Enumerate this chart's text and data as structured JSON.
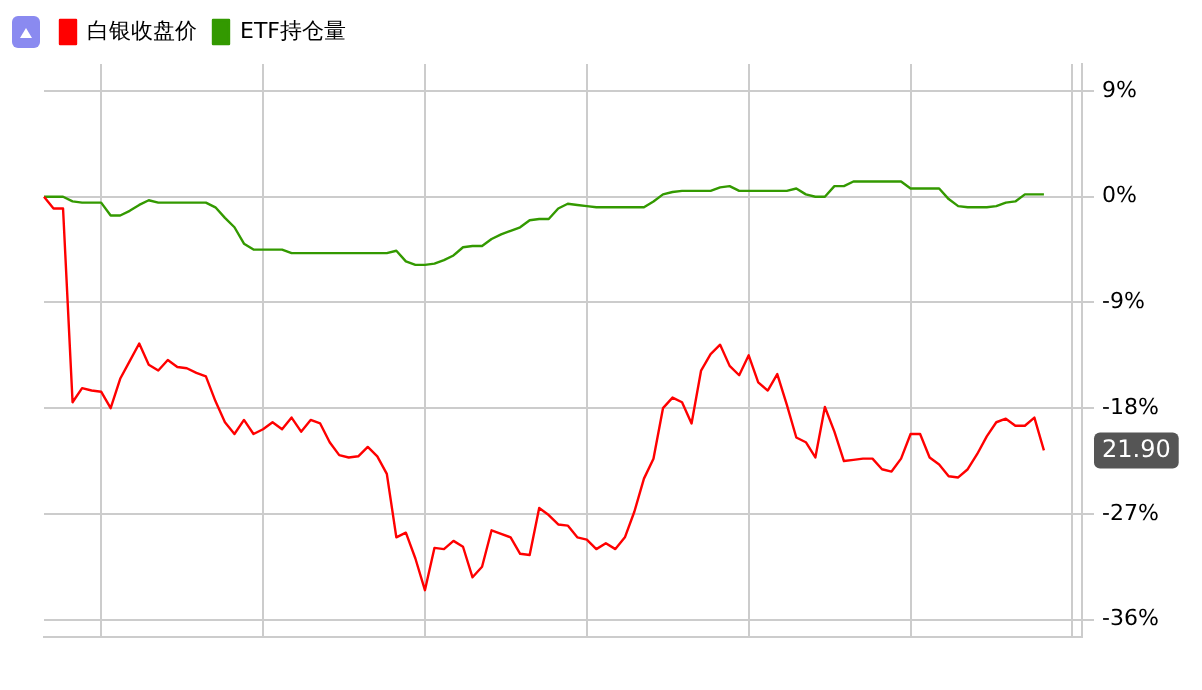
{
  "chart_data": {
    "type": "line",
    "categories": [
      null,
      null,
      null,
      null,
      null,
      null,
      null,
      null,
      null,
      null,
      null,
      null,
      null,
      null,
      null,
      null,
      null,
      null,
      null,
      null,
      null,
      null,
      null,
      null,
      null,
      null,
      null,
      null,
      null,
      null,
      null,
      null,
      null,
      null,
      null,
      null,
      null,
      null,
      null,
      null,
      null,
      null,
      null,
      null,
      null,
      null,
      null,
      null,
      null,
      null,
      null,
      null,
      null,
      null,
      null,
      null,
      null,
      null,
      null,
      null,
      null,
      null,
      null,
      null,
      null,
      null,
      null,
      null,
      null,
      null,
      null,
      null,
      null,
      null,
      null,
      null,
      null,
      null,
      null,
      null,
      null,
      null,
      null,
      null,
      null,
      null,
      null,
      null,
      null,
      null,
      null,
      null,
      null,
      null,
      null,
      null,
      null,
      null,
      null,
      null,
      null,
      null,
      null,
      null,
      null,
      null,
      null,
      null,
      null,
      null
    ],
    "series": [
      {
        "name": "白银收盘价",
        "color": "#ff0000",
        "values": [
          0,
          -1.0,
          -1.0,
          -17.5,
          -16.3,
          -16.5,
          -16.6,
          -18.0,
          -15.5,
          -14.0,
          -12.5,
          -14.3,
          -14.8,
          -13.9,
          -14.5,
          -14.6,
          -15.0,
          -15.3,
          -17.4,
          -19.2,
          -20.2,
          -19.0,
          -20.2,
          -19.8,
          -19.2,
          -19.8,
          -18.8,
          -20.0,
          -19.0,
          -19.3,
          -20.9,
          -22.0,
          -22.2,
          -22.1,
          -21.3,
          -22.1,
          -23.6,
          -29.0,
          -28.6,
          -30.8,
          -33.5,
          -29.9,
          -30.0,
          -29.3,
          -29.8,
          -32.4,
          -31.5,
          -28.4,
          -28.7,
          -29.0,
          -30.4,
          -30.5,
          -26.5,
          -27.1,
          -27.9,
          -28.0,
          -29.0,
          -29.2,
          -30.0,
          -29.5,
          -30.0,
          -29.0,
          -26.8,
          -24.0,
          -22.3,
          -18.0,
          -17.1,
          -17.5,
          -19.3,
          -14.8,
          -13.4,
          -12.6,
          -14.4,
          -15.2,
          -13.5,
          -15.8,
          -16.5,
          -15.1,
          -17.7,
          -20.5,
          -20.9,
          -22.2,
          -17.9,
          -20.0,
          -22.5,
          -22.4,
          -22.3,
          -22.3,
          -23.2,
          -23.4,
          -22.3,
          -20.2,
          -20.2,
          -22.2,
          -22.8,
          -23.8,
          -23.9,
          -23.2,
          -21.9,
          -20.4,
          -19.2,
          -18.9,
          -19.5,
          -19.5,
          -18.8,
          -21.6,
          null,
          null,
          null,
          null
        ]
      },
      {
        "name": "ETF持仓量",
        "color": "#339900",
        "values": [
          0,
          0,
          0,
          -0.4,
          -0.5,
          -0.5,
          -0.5,
          -1.6,
          -1.6,
          -1.2,
          -0.7,
          -0.3,
          -0.5,
          -0.5,
          -0.5,
          -0.5,
          -0.5,
          -0.5,
          -0.9,
          -1.8,
          -2.6,
          -4.0,
          -4.5,
          -4.5,
          -4.5,
          -4.5,
          -4.8,
          -4.8,
          -4.8,
          -4.8,
          -4.8,
          -4.8,
          -4.8,
          -4.8,
          -4.8,
          -4.8,
          -4.8,
          -4.6,
          -5.5,
          -5.8,
          -5.8,
          -5.7,
          -5.4,
          -5.0,
          -4.3,
          -4.2,
          -4.2,
          -3.6,
          -3.2,
          -2.9,
          -2.6,
          -2.0,
          -1.9,
          -1.9,
          -1.0,
          -0.6,
          -0.7,
          -0.8,
          -0.9,
          -0.9,
          -0.9,
          -0.9,
          -0.9,
          -0.9,
          -0.4,
          0.2,
          0.4,
          0.5,
          0.5,
          0.5,
          0.5,
          0.8,
          0.9,
          0.5,
          0.5,
          0.5,
          0.5,
          0.5,
          0.5,
          0.7,
          0.2,
          0,
          0,
          0.9,
          0.9,
          1.3,
          1.3,
          1.3,
          1.3,
          1.3,
          1.3,
          0.7,
          0.7,
          0.7,
          0.7,
          -0.2,
          -0.8,
          -0.9,
          -0.9,
          -0.9,
          -0.8,
          -0.5,
          -0.4,
          0.2,
          0.2,
          0.2,
          null,
          null,
          null,
          null
        ]
      }
    ],
    "ylim": [
      -37.5,
      11.3
    ],
    "yticks": [
      {
        "value": 9,
        "label": "9%"
      },
      {
        "value": 0,
        "label": "0%"
      },
      {
        "value": -9,
        "label": "-9%"
      },
      {
        "value": -18,
        "label": "-18%"
      },
      {
        "value": -27,
        "label": "-27%"
      },
      {
        "value": -36,
        "label": "-36%"
      }
    ],
    "annotations": [
      "21.90"
    ],
    "grid": true,
    "legend": "top left",
    "marker": "none",
    "line_style": "solid"
  }
}
